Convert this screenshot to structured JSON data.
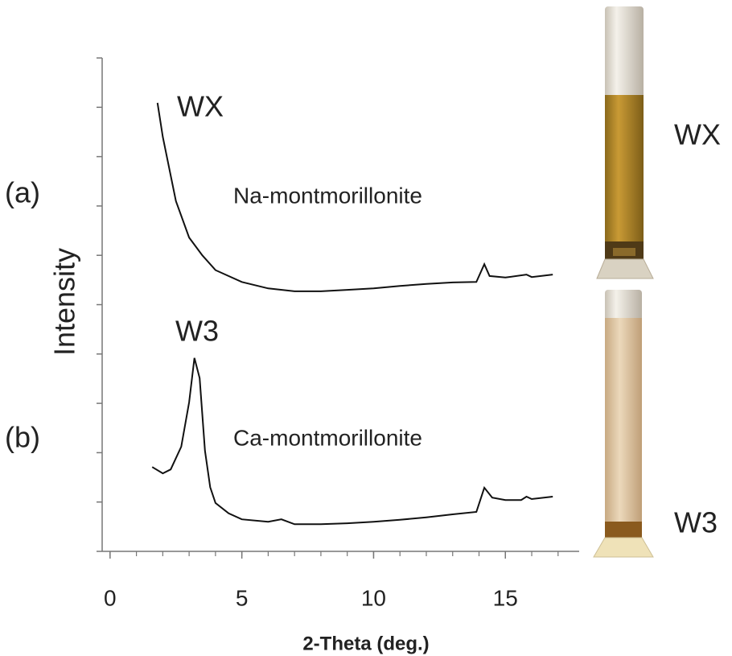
{
  "chart_data": {
    "type": "line",
    "x_label": "2-Theta (deg.)",
    "y_label": "Intensity",
    "xlim": [
      -0.3,
      17.8
    ],
    "ylim": [
      0,
      10
    ],
    "xticks": [
      0,
      5,
      10,
      15
    ],
    "x_minor_step": 1,
    "yticks": [
      0,
      1,
      2,
      3,
      4,
      5,
      6,
      7,
      8,
      9,
      10
    ],
    "ytick_labels": false,
    "annotations": [
      "(a)",
      "Na-montmorillonite",
      "(b)",
      "Ca-montmorillonite"
    ],
    "series": [
      {
        "name": "WX",
        "color": "#111111",
        "x": [
          1.8,
          2,
          2.5,
          3,
          3.5,
          4,
          5,
          6,
          7,
          8,
          9,
          10,
          11,
          12,
          13,
          13.9,
          14.2,
          14.4,
          15,
          15.8,
          16,
          16.8
        ],
        "values": [
          9.09,
          8.4,
          7.1,
          6.36,
          6.0,
          5.7,
          5.46,
          5.33,
          5.27,
          5.27,
          5.3,
          5.33,
          5.38,
          5.42,
          5.45,
          5.46,
          5.82,
          5.58,
          5.55,
          5.61,
          5.56,
          5.61
        ]
      },
      {
        "name": "W3",
        "color": "#111111",
        "x": [
          1.6,
          2,
          2.3,
          2.7,
          3,
          3.2,
          3.4,
          3.6,
          3.8,
          4,
          4.5,
          5,
          6,
          6.5,
          7,
          8,
          9,
          10,
          11,
          12,
          13,
          13.9,
          14.2,
          14.5,
          15,
          15.6,
          15.8,
          16,
          16.8
        ],
        "values": [
          1.71,
          1.58,
          1.66,
          2.12,
          3.02,
          3.92,
          3.51,
          2.04,
          1.3,
          0.98,
          0.77,
          0.65,
          0.6,
          0.65,
          0.55,
          0.55,
          0.57,
          0.6,
          0.64,
          0.69,
          0.75,
          0.8,
          1.29,
          1.09,
          1.04,
          1.04,
          1.11,
          1.06,
          1.11
        ]
      }
    ]
  }
}
